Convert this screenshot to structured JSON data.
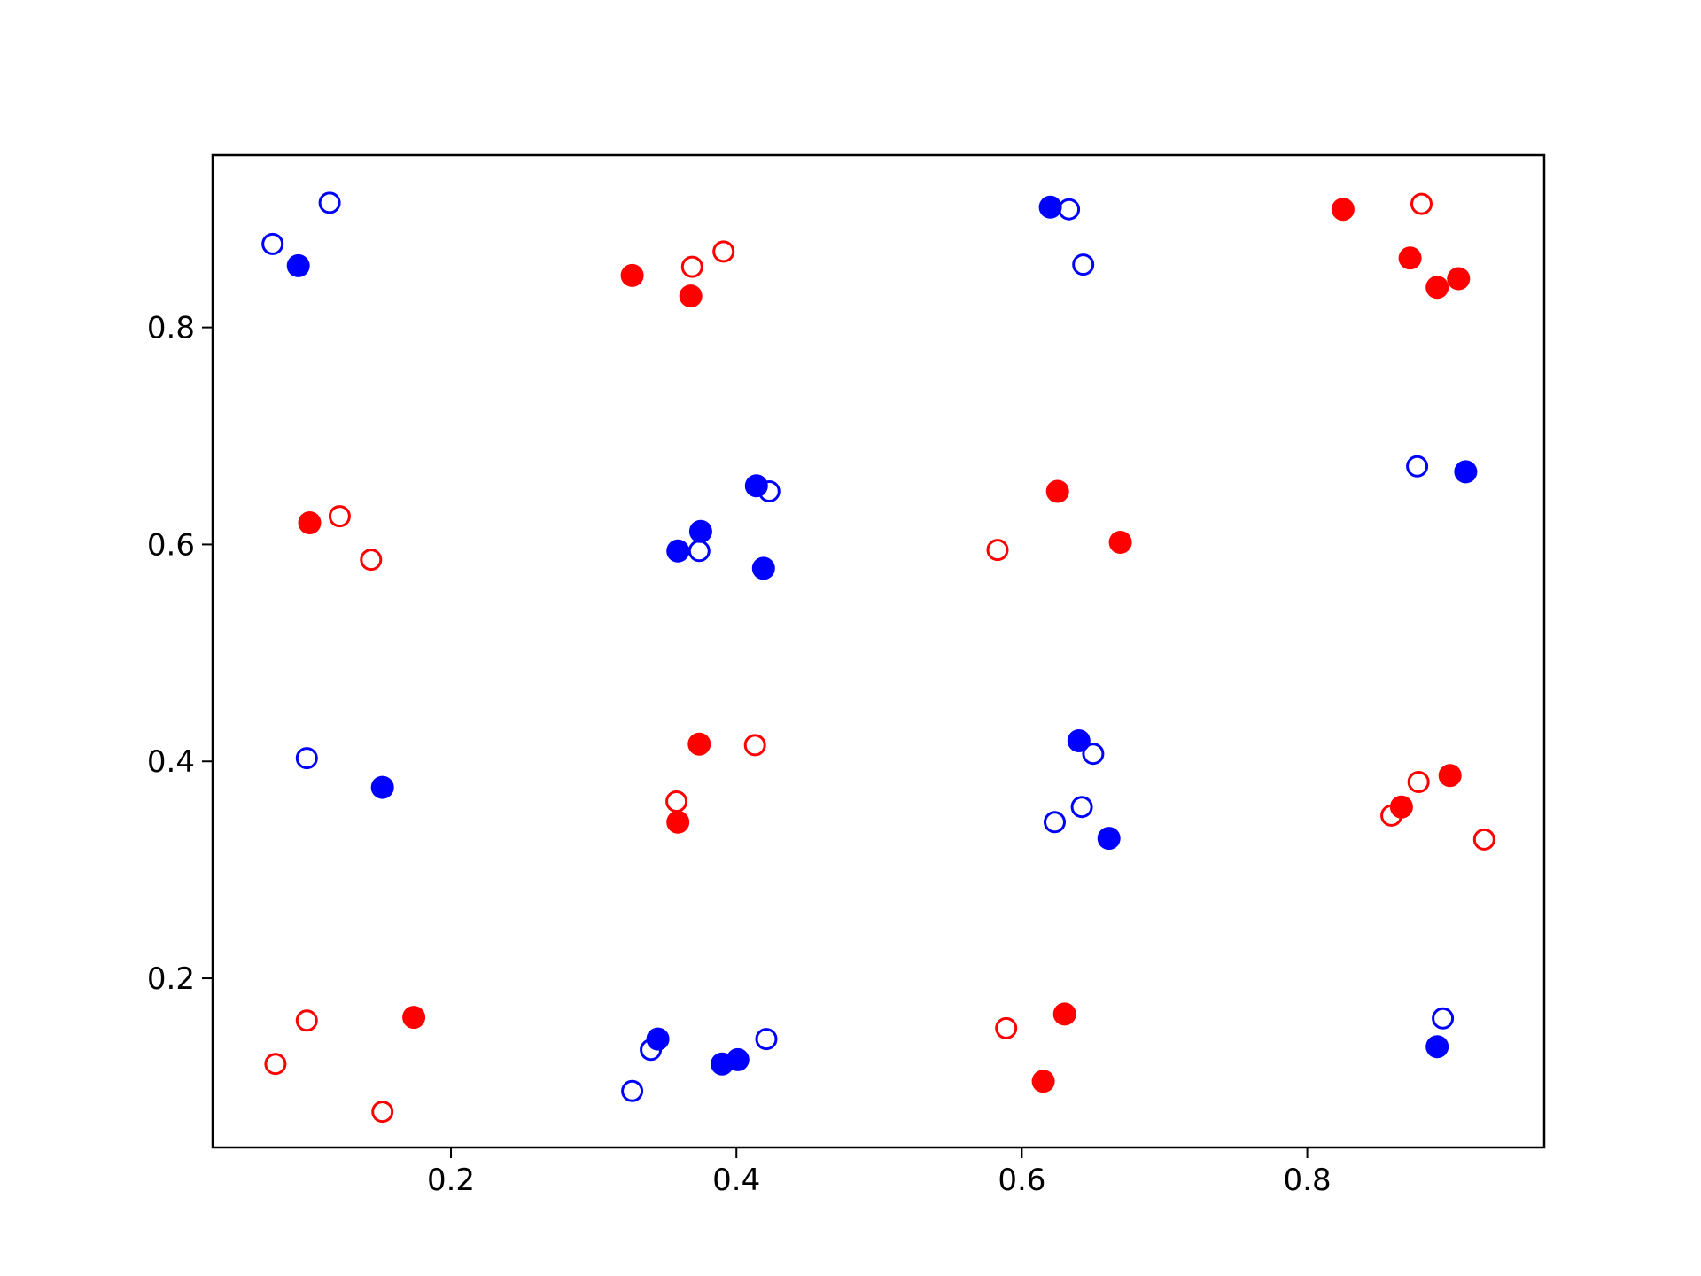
{
  "chart_data": {
    "type": "scatter",
    "title": "",
    "xlabel": "",
    "ylabel": "",
    "xlim": [
      0.033,
      0.966
    ],
    "ylim": [
      0.044,
      0.959
    ],
    "xticks": [
      0.2,
      0.4,
      0.6,
      0.8
    ],
    "yticks": [
      0.2,
      0.4,
      0.6,
      0.8
    ],
    "xtick_labels": [
      "0.2",
      "0.4",
      "0.6",
      "0.8"
    ],
    "ytick_labels": [
      "0.2",
      "0.4",
      "0.6",
      "0.8"
    ],
    "grid": false,
    "legend": false,
    "series": [
      {
        "color": "#ff0000",
        "fill": "filled",
        "points": [
          [
            0.327,
            0.848
          ],
          [
            0.368,
            0.829
          ],
          [
            0.825,
            0.909
          ],
          [
            0.872,
            0.864
          ],
          [
            0.891,
            0.837
          ],
          [
            0.906,
            0.845
          ],
          [
            0.101,
            0.62
          ],
          [
            0.625,
            0.649
          ],
          [
            0.669,
            0.602
          ],
          [
            0.374,
            0.416
          ],
          [
            0.359,
            0.344
          ],
          [
            0.866,
            0.358
          ],
          [
            0.9,
            0.387
          ],
          [
            0.174,
            0.164
          ],
          [
            0.63,
            0.167
          ],
          [
            0.615,
            0.105
          ]
        ]
      },
      {
        "color": "#ff0000",
        "fill": "hollow",
        "points": [
          [
            0.369,
            0.856
          ],
          [
            0.391,
            0.87
          ],
          [
            0.88,
            0.914
          ],
          [
            0.122,
            0.626
          ],
          [
            0.144,
            0.586
          ],
          [
            0.583,
            0.595
          ],
          [
            0.358,
            0.363
          ],
          [
            0.413,
            0.415
          ],
          [
            0.859,
            0.35
          ],
          [
            0.878,
            0.381
          ],
          [
            0.924,
            0.328
          ],
          [
            0.077,
            0.121
          ],
          [
            0.099,
            0.161
          ],
          [
            0.152,
            0.077
          ],
          [
            0.589,
            0.154
          ]
        ]
      },
      {
        "color": "#0000ff",
        "fill": "filled",
        "points": [
          [
            0.093,
            0.857
          ],
          [
            0.62,
            0.911
          ],
          [
            0.359,
            0.594
          ],
          [
            0.375,
            0.612
          ],
          [
            0.414,
            0.654
          ],
          [
            0.419,
            0.578
          ],
          [
            0.911,
            0.667
          ],
          [
            0.152,
            0.376
          ],
          [
            0.64,
            0.419
          ],
          [
            0.661,
            0.329
          ],
          [
            0.345,
            0.144
          ],
          [
            0.39,
            0.121
          ],
          [
            0.401,
            0.125
          ],
          [
            0.891,
            0.137
          ]
        ]
      },
      {
        "color": "#0000ff",
        "fill": "hollow",
        "points": [
          [
            0.075,
            0.877
          ],
          [
            0.115,
            0.915
          ],
          [
            0.633,
            0.909
          ],
          [
            0.643,
            0.858
          ],
          [
            0.374,
            0.594
          ],
          [
            0.423,
            0.649
          ],
          [
            0.877,
            0.672
          ],
          [
            0.099,
            0.403
          ],
          [
            0.623,
            0.344
          ],
          [
            0.642,
            0.358
          ],
          [
            0.65,
            0.407
          ],
          [
            0.327,
            0.096
          ],
          [
            0.34,
            0.134
          ],
          [
            0.421,
            0.144
          ],
          [
            0.895,
            0.163
          ]
        ]
      }
    ]
  }
}
